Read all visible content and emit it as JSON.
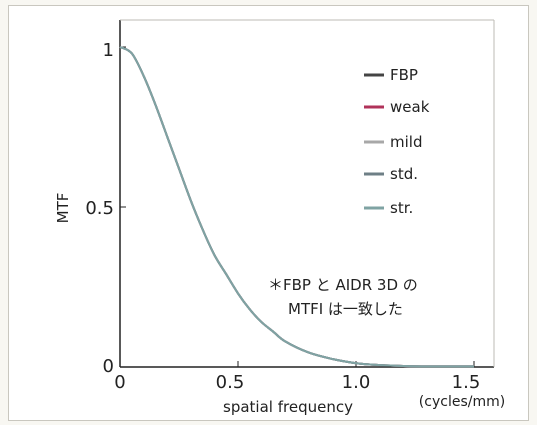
{
  "chart_data": {
    "type": "line",
    "title": "",
    "xlabel": "spatial frequency",
    "x_unit": "(cycles/mm)",
    "ylabel": "MTF",
    "xlim": [
      0,
      1.5
    ],
    "ylim": [
      0,
      1
    ],
    "x_ticks": [
      "0",
      "0.5",
      "1.0",
      "1.5"
    ],
    "y_ticks": [
      "0",
      "0.5",
      "1"
    ],
    "grid": false,
    "legend_position": "top-right",
    "series": [
      {
        "name": "FBP",
        "color": "#444444",
        "x": [
          0,
          0.05,
          0.1,
          0.15,
          0.2,
          0.25,
          0.3,
          0.35,
          0.4,
          0.45,
          0.5,
          0.55,
          0.6,
          0.65,
          0.7,
          0.8,
          0.9,
          1.0,
          1.1,
          1.2,
          1.3,
          1.4,
          1.5
        ],
        "y": [
          1.0,
          0.98,
          0.91,
          0.82,
          0.72,
          0.62,
          0.52,
          0.43,
          0.35,
          0.29,
          0.23,
          0.18,
          0.14,
          0.11,
          0.08,
          0.045,
          0.025,
          0.012,
          0.006,
          0.003,
          0.002,
          0.002,
          0.002
        ]
      },
      {
        "name": "weak",
        "color": "#b0325a",
        "x": [
          0,
          0.05,
          0.1,
          0.15,
          0.2,
          0.25,
          0.3,
          0.35,
          0.4,
          0.45,
          0.5,
          0.55,
          0.6,
          0.65,
          0.7,
          0.8,
          0.9,
          1.0,
          1.1,
          1.2,
          1.3,
          1.4,
          1.5
        ],
        "y": [
          1.0,
          0.98,
          0.91,
          0.82,
          0.72,
          0.62,
          0.52,
          0.43,
          0.35,
          0.29,
          0.23,
          0.18,
          0.14,
          0.11,
          0.08,
          0.045,
          0.025,
          0.012,
          0.006,
          0.003,
          0.002,
          0.002,
          0.002
        ]
      },
      {
        "name": "mild",
        "color": "#a8a8a8",
        "x": [
          0,
          0.05,
          0.1,
          0.15,
          0.2,
          0.25,
          0.3,
          0.35,
          0.4,
          0.45,
          0.5,
          0.55,
          0.6,
          0.65,
          0.7,
          0.8,
          0.9,
          1.0,
          1.1,
          1.2,
          1.3,
          1.4,
          1.5
        ],
        "y": [
          1.0,
          0.98,
          0.91,
          0.82,
          0.72,
          0.62,
          0.52,
          0.43,
          0.35,
          0.29,
          0.23,
          0.18,
          0.14,
          0.11,
          0.08,
          0.045,
          0.025,
          0.012,
          0.006,
          0.003,
          0.002,
          0.002,
          0.002
        ]
      },
      {
        "name": "std.",
        "color": "#6e7f86",
        "x": [
          0,
          0.05,
          0.1,
          0.15,
          0.2,
          0.25,
          0.3,
          0.35,
          0.4,
          0.45,
          0.5,
          0.55,
          0.6,
          0.65,
          0.7,
          0.8,
          0.9,
          1.0,
          1.1,
          1.2,
          1.3,
          1.4,
          1.5
        ],
        "y": [
          1.0,
          0.98,
          0.91,
          0.82,
          0.72,
          0.62,
          0.52,
          0.43,
          0.35,
          0.29,
          0.23,
          0.18,
          0.14,
          0.11,
          0.08,
          0.045,
          0.025,
          0.012,
          0.006,
          0.003,
          0.002,
          0.002,
          0.002
        ]
      },
      {
        "name": "str.",
        "color": "#7fa3a3",
        "x": [
          0,
          0.05,
          0.1,
          0.15,
          0.2,
          0.25,
          0.3,
          0.35,
          0.4,
          0.45,
          0.5,
          0.55,
          0.6,
          0.65,
          0.7,
          0.8,
          0.9,
          1.0,
          1.1,
          1.2,
          1.3,
          1.4,
          1.5
        ],
        "y": [
          1.0,
          0.98,
          0.91,
          0.82,
          0.72,
          0.62,
          0.52,
          0.43,
          0.35,
          0.29,
          0.23,
          0.18,
          0.14,
          0.11,
          0.08,
          0.045,
          0.025,
          0.012,
          0.006,
          0.003,
          0.002,
          0.002,
          0.002
        ]
      }
    ],
    "annotation": {
      "line1": "＊FBP と AIDR 3D の",
      "line2": "MTFI は一致した"
    }
  }
}
